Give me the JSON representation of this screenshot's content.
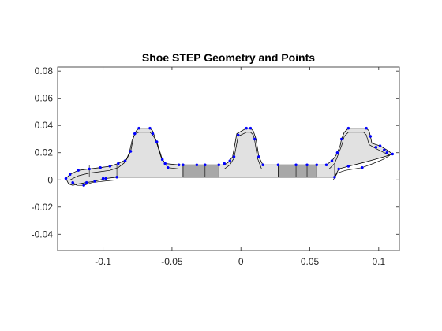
{
  "chart_data": {
    "type": "line",
    "title": "Shoe STEP Geometry and Points",
    "xlabel": "",
    "ylabel": "",
    "xlim": [
      -0.133,
      0.115
    ],
    "ylim": [
      -0.052,
      0.083
    ],
    "xticks": [
      -0.1,
      -0.05,
      0,
      0.05,
      0.1
    ],
    "xtick_labels": [
      "-0.1",
      "-0.05",
      "0",
      "0.05",
      "0.1"
    ],
    "yticks": [
      -0.04,
      -0.02,
      0,
      0.02,
      0.04,
      0.06,
      0.08
    ],
    "ytick_labels": [
      "-0.04",
      "-0.02",
      "0",
      "0.02",
      "0.04",
      "0.06",
      "0.08"
    ],
    "grid": false,
    "colors": {
      "face_fill": "#e1e1e1",
      "face_dark": "#a8a8a8",
      "edge": "#000000",
      "points": "#0000ff",
      "axis": "#262626"
    },
    "series": [
      {
        "role": "outer-boundary",
        "x": [
          -0.127,
          -0.124,
          -0.118,
          -0.11,
          -0.102,
          -0.095,
          -0.089,
          -0.083,
          -0.08,
          -0.078,
          -0.076,
          -0.074,
          -0.066,
          -0.064,
          -0.062,
          -0.058,
          -0.055,
          -0.045,
          -0.028,
          -0.012,
          -0.009,
          -0.006,
          -0.003,
          0.004,
          0.007,
          0.009,
          0.011,
          0.013,
          0.016,
          0.03,
          0.05,
          0.062,
          0.066,
          0.069,
          0.072,
          0.073,
          0.075,
          0.078,
          0.091,
          0.093,
          0.094,
          0.095,
          0.101,
          0.106,
          0.11,
          0.104,
          0.097,
          0.09,
          0.078,
          0.071,
          0.068,
          0.018,
          -0.02,
          -0.09,
          -0.098,
          -0.106,
          -0.112,
          -0.118,
          -0.122,
          -0.125
        ],
        "y": [
          0.001,
          0.004,
          0.007,
          0.008,
          0.009,
          0.01,
          0.012,
          0.015,
          0.021,
          0.031,
          0.036,
          0.038,
          0.038,
          0.036,
          0.03,
          0.017,
          0.012,
          0.011,
          0.011,
          0.011,
          0.013,
          0.017,
          0.034,
          0.038,
          0.038,
          0.036,
          0.03,
          0.017,
          0.011,
          0.011,
          0.011,
          0.011,
          0.014,
          0.018,
          0.025,
          0.03,
          0.035,
          0.038,
          0.038,
          0.036,
          0.032,
          0.027,
          0.025,
          0.022,
          0.019,
          0.017,
          0.015,
          0.013,
          0.01,
          0.008,
          0.002,
          0.002,
          0.002,
          0.002,
          0.001,
          -0.001,
          -0.002,
          -0.003,
          -0.004,
          -0.003
        ]
      },
      {
        "role": "inner-offset",
        "x": [
          -0.124,
          -0.118,
          -0.11,
          -0.102,
          -0.095,
          -0.089,
          -0.084,
          -0.081,
          -0.079,
          -0.077,
          -0.074,
          -0.066,
          -0.064,
          -0.061,
          -0.057,
          -0.053,
          -0.045,
          -0.028,
          -0.012,
          -0.008,
          -0.005,
          -0.002,
          0.004,
          0.007,
          0.009,
          0.01,
          0.012,
          0.015,
          0.03,
          0.05,
          0.064,
          0.068,
          0.07,
          0.073,
          0.075,
          0.078,
          0.089,
          0.091,
          0.093,
          0.098,
          0.104,
          0.108,
          0.103,
          0.096,
          0.088,
          0.076,
          0.07,
          0.067,
          0.018,
          -0.02,
          -0.09,
          -0.1,
          -0.108,
          -0.114,
          -0.119,
          -0.122
        ],
        "y": [
          0.0,
          0.003,
          0.005,
          0.006,
          0.007,
          0.009,
          0.013,
          0.02,
          0.029,
          0.034,
          0.035,
          0.035,
          0.033,
          0.028,
          0.015,
          0.009,
          0.008,
          0.008,
          0.008,
          0.011,
          0.016,
          0.032,
          0.035,
          0.035,
          0.033,
          0.029,
          0.016,
          0.008,
          0.008,
          0.008,
          0.008,
          0.012,
          0.017,
          0.025,
          0.032,
          0.035,
          0.035,
          0.033,
          0.026,
          0.023,
          0.02,
          0.018,
          0.015,
          0.012,
          0.009,
          0.007,
          0.005,
          0.0,
          0.0,
          0.0,
          0.0,
          -0.001,
          -0.002,
          -0.004,
          -0.004,
          -0.002
        ]
      }
    ],
    "dark_blocks": [
      {
        "x": [
          -0.042,
          -0.016
        ],
        "y": [
          0.002,
          0.011
        ]
      },
      {
        "x": [
          0.027,
          0.055
        ],
        "y": [
          0.002,
          0.011
        ]
      }
    ],
    "divider_x": [
      -0.11,
      -0.1,
      -0.09,
      -0.042,
      -0.032,
      -0.026,
      -0.016,
      0.027,
      0.04,
      0.048,
      0.055,
      0.068
    ],
    "point_markers": {
      "x": [
        -0.127,
        -0.124,
        -0.122,
        -0.118,
        -0.114,
        -0.11,
        -0.106,
        -0.102,
        -0.098,
        -0.095,
        -0.089,
        -0.084,
        -0.08,
        -0.077,
        -0.074,
        -0.066,
        -0.064,
        -0.061,
        -0.057,
        -0.055,
        -0.053,
        -0.045,
        -0.042,
        -0.032,
        -0.026,
        -0.016,
        -0.012,
        -0.008,
        -0.005,
        -0.002,
        0.004,
        0.007,
        0.01,
        0.013,
        0.016,
        0.027,
        0.04,
        0.048,
        0.055,
        0.062,
        0.066,
        0.07,
        0.073,
        0.078,
        0.091,
        0.094,
        0.098,
        0.101,
        0.104,
        0.106,
        0.11,
        0.088,
        0.078,
        0.071,
        0.068,
        -0.09,
        -0.1,
        -0.112
      ],
      "y": [
        0.001,
        0.004,
        -0.002,
        0.007,
        -0.004,
        0.008,
        -0.001,
        0.009,
        0.001,
        0.01,
        0.012,
        0.014,
        0.021,
        0.034,
        0.038,
        0.038,
        0.034,
        0.028,
        0.015,
        0.012,
        0.009,
        0.011,
        0.011,
        0.011,
        0.011,
        0.011,
        0.012,
        0.014,
        0.017,
        0.033,
        0.038,
        0.038,
        0.03,
        0.017,
        0.011,
        0.011,
        0.011,
        0.011,
        0.011,
        0.011,
        0.014,
        0.02,
        0.03,
        0.038,
        0.038,
        0.032,
        0.024,
        0.025,
        0.022,
        0.02,
        0.019,
        0.009,
        0.01,
        0.008,
        0.002,
        0.002,
        0.001,
        -0.002
      ]
    }
  }
}
